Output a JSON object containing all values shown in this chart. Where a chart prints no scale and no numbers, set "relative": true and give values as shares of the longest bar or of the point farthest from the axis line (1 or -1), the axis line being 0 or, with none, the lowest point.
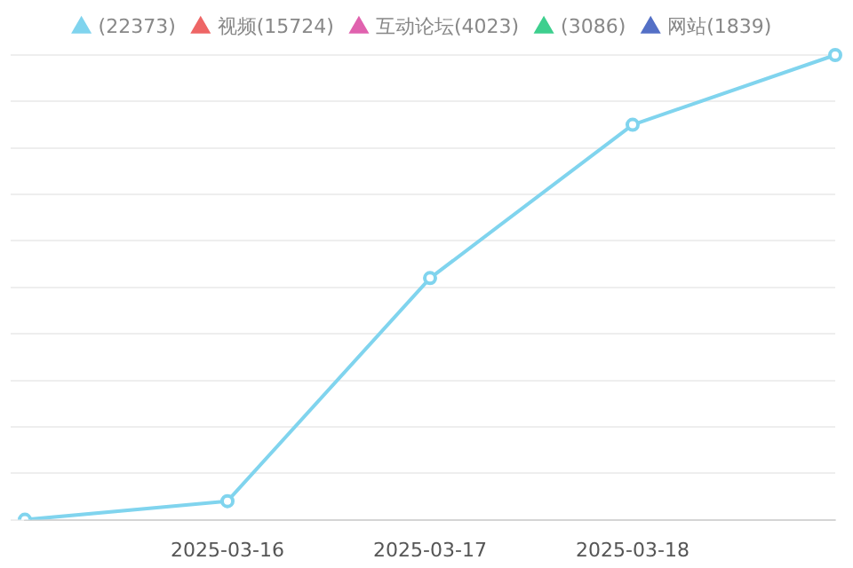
{
  "chart_data": {
    "type": "line",
    "relative": true,
    "categories": [
      null,
      "2025-03-16",
      "2025-03-17",
      "2025-03-18",
      null
    ],
    "series": [
      {
        "name": "(22373)",
        "color": "#80d4ee",
        "values": [
          0,
          0.04,
          0.52,
          0.85,
          1
        ]
      },
      {
        "name": "视频(15724)",
        "color": "#ee6666",
        "values": [
          null,
          null,
          null,
          null,
          null
        ]
      },
      {
        "name": "互动论坛(4023)",
        "color": "#e062ae",
        "values": [
          null,
          null,
          null,
          null,
          null
        ]
      },
      {
        "name": "(3086)",
        "color": "#3ecf8e",
        "values": [
          null,
          null,
          null,
          null,
          null
        ]
      },
      {
        "name": "网站(1839)",
        "color": "#5470c6",
        "values": [
          null,
          null,
          null,
          null,
          null
        ]
      }
    ],
    "legend": "top",
    "grid": "y",
    "marker": "circle",
    "line_style": "solid"
  }
}
